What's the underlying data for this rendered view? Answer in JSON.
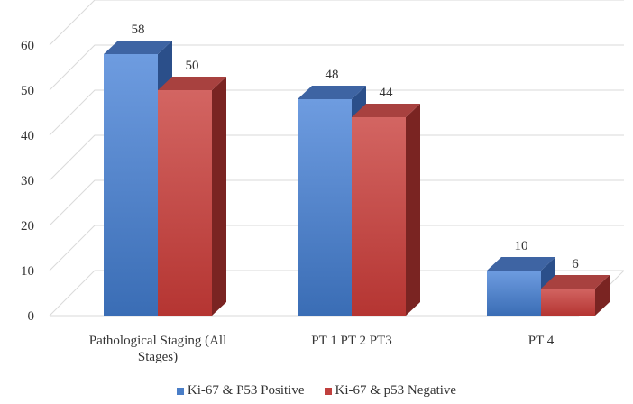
{
  "chart_data": {
    "type": "bar",
    "style": "3d-clustered-column",
    "categories": [
      "Pathological Staging (All Stages)",
      "PT 1 PT 2 PT3",
      "PT 4"
    ],
    "category_lines": [
      [
        "Pathological Staging (All",
        "Stages)"
      ],
      [
        "PT 1 PT 2 PT3"
      ],
      [
        "PT 4"
      ]
    ],
    "series": [
      {
        "name": "Ki-67 & P53 Positive",
        "values": [
          58,
          48,
          10
        ],
        "color": "#4a7ec7"
      },
      {
        "name": "Ki-67 & p53 Negative",
        "values": [
          50,
          44,
          6
        ],
        "color": "#c0403e"
      }
    ],
    "title": "",
    "xlabel": "",
    "ylabel": "",
    "ylim": [
      0,
      60
    ],
    "yticks": [
      0,
      10,
      20,
      30,
      40,
      50,
      60
    ],
    "grid": true,
    "legend_position": "bottom"
  },
  "legend": {
    "items": [
      {
        "label": "Ki-67 & P53 Positive",
        "color": "#4a7ec7"
      },
      {
        "label": "Ki-67 & p53 Negative",
        "color": "#c0403e"
      }
    ]
  }
}
